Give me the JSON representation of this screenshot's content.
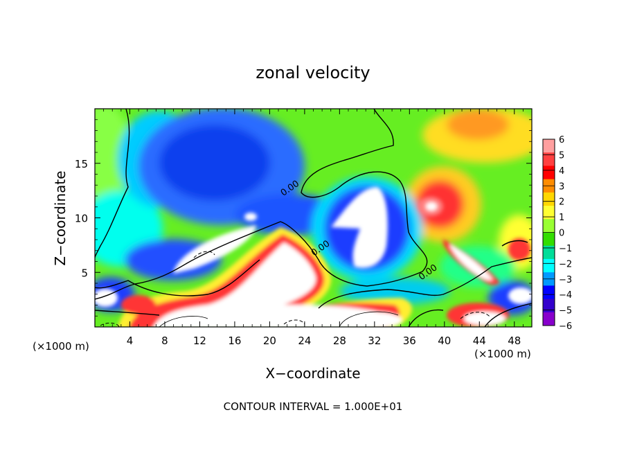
{
  "chart_data": {
    "type": "heatmap",
    "title": "zonal velocity",
    "xlabel": "X−coordinate",
    "ylabel": "Z−coordinate",
    "x_unit_left": "(×1000 m)",
    "x_unit_right": "(×1000 m)",
    "footer": "CONTOUR INTERVAL = 1.000E+01",
    "xlim": [
      0,
      50
    ],
    "ylim": [
      0,
      20
    ],
    "x_ticks": [
      4,
      8,
      12,
      16,
      20,
      24,
      28,
      32,
      36,
      40,
      44,
      48
    ],
    "x_tick_labels": [
      "4",
      "8",
      "12",
      "16",
      "20",
      "24",
      "28",
      "32",
      "36",
      "40",
      "44",
      "48"
    ],
    "y_ticks": [
      5,
      10,
      15
    ],
    "y_tick_labels": [
      "5",
      "10",
      "15"
    ],
    "colorbar": {
      "min": -6,
      "max": 6,
      "levels": [
        6,
        5,
        4,
        3,
        2,
        1,
        0,
        -1,
        -2,
        -3,
        -4,
        -5,
        -6
      ],
      "labels": [
        "6",
        "5",
        "4",
        "3",
        "2",
        "1",
        "0",
        "−1",
        "−2",
        "−3",
        "−4",
        "−5",
        "−6"
      ],
      "colors": [
        "#ff9f9f",
        "#ff4040",
        "#ff0000",
        "#ff8c00",
        "#ffd700",
        "#ffff33",
        "#99ff33",
        "#33dd00",
        "#00dd99",
        "#00ffff",
        "#0099ff",
        "#0000ff",
        "#3300cc",
        "#8800cc"
      ]
    },
    "contour_labels": [
      {
        "text": "0.00",
        "x": 22.5,
        "y": 12.5
      },
      {
        "text": "0.00",
        "x": 26.0,
        "y": 7.0
      },
      {
        "text": "0.00",
        "x": 38.3,
        "y": 4.8
      }
    ],
    "features": [
      {
        "kind": "positive-core",
        "x": 38.5,
        "y": 10.5,
        "value": 6
      },
      {
        "kind": "positive-band",
        "x": 22,
        "y": 3,
        "value": 6
      },
      {
        "kind": "negative-core",
        "x": 31,
        "y": 9,
        "value": -6
      },
      {
        "kind": "negative-core",
        "x": 12,
        "y": 6.5,
        "value": -6
      },
      {
        "kind": "negative-region",
        "x": 14,
        "y": 13,
        "value": -4
      },
      {
        "kind": "positive-region",
        "x": 44,
        "y": 18,
        "value": 3
      }
    ]
  }
}
